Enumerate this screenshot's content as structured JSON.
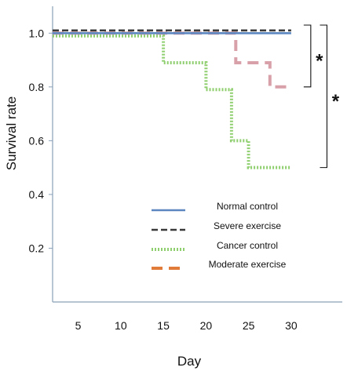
{
  "chart_data": {
    "type": "line",
    "step": true,
    "xlabel": "Day",
    "ylabel": "Survival rate",
    "xlim": [
      2,
      36
    ],
    "ylim": [
      0.0,
      1.1
    ],
    "xticks": [
      "5",
      "10",
      "15",
      "20",
      "25",
      "30"
    ],
    "xtick_values": [
      5,
      10,
      15,
      20,
      25,
      30
    ],
    "yticks": [
      "0.2",
      "0.4",
      "0.6",
      "0.8",
      "1.0"
    ],
    "ytick_values": [
      0.2,
      0.4,
      0.6,
      0.8,
      1.0
    ],
    "grid": false,
    "legend_position": "center",
    "series": [
      {
        "name": "Normal control",
        "color": "#5b86c0",
        "style": "solid",
        "x": [
          2,
          30
        ],
        "y": [
          1.0,
          1.0
        ]
      },
      {
        "name": "Severe exercise",
        "color": "#3a3a3a",
        "style": "dashed",
        "x": [
          2,
          30
        ],
        "y": [
          1.01,
          1.01
        ]
      },
      {
        "name": "Cancer control",
        "color": "#8fcf6f",
        "style": "dotted",
        "x": [
          2,
          15,
          15,
          20,
          20,
          23,
          23,
          25,
          25,
          30
        ],
        "y": [
          0.99,
          0.99,
          0.89,
          0.89,
          0.79,
          0.79,
          0.6,
          0.6,
          0.5,
          0.5
        ]
      },
      {
        "name": "Moderate exercise",
        "color": "#d8a0a8",
        "style": "longdash",
        "legend_color": "#e07b39",
        "x": [
          2,
          23.5,
          23.5,
          27.5,
          27.5,
          30
        ],
        "y": [
          1.0,
          1.0,
          0.89,
          0.89,
          0.8,
          0.8
        ]
      }
    ],
    "annotations": [
      {
        "text": "*",
        "brace_from": 1.03,
        "brace_to": 0.8,
        "x": 32.3
      },
      {
        "text": "*",
        "brace_from": 1.03,
        "brace_to": 0.5,
        "x": 34.2
      }
    ]
  }
}
